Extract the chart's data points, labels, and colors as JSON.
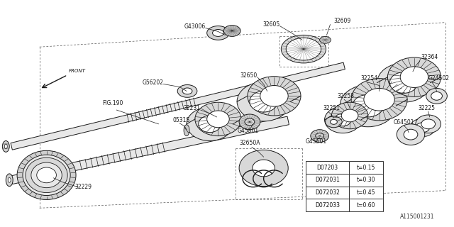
{
  "bg_color": "#ffffff",
  "ec": "#1a1a1a",
  "fig_id": "A115001231",
  "front_label": "FRONT",
  "fig_ref": "FIG.190",
  "table_data": [
    [
      "D07203",
      "t=0.15"
    ],
    [
      "D072031",
      "t=0.30"
    ],
    [
      "D072032",
      "t=0.45"
    ],
    [
      "D072033",
      "t=0.60"
    ]
  ]
}
